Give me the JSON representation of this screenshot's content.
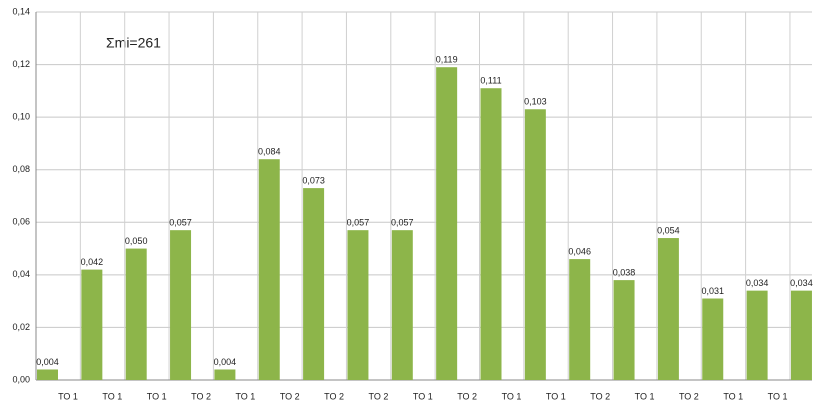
{
  "chart_data": {
    "type": "bar",
    "annotation": "Σmi=261",
    "categories": [
      "TO 1",
      "TO 1",
      "TO 1",
      "TO 2",
      "TO 1",
      "TO 2",
      "TO 2",
      "TO 2",
      "TO 1",
      "TO 2",
      "TO 1",
      "TO 1",
      "TO 2",
      "TO 1",
      "TO 2",
      "TO 1",
      "TO 1",
      null
    ],
    "values": [
      0.004,
      0.042,
      0.05,
      0.057,
      0.004,
      0.084,
      0.073,
      0.057,
      0.057,
      0.119,
      0.111,
      0.103,
      0.046,
      0.038,
      0.054,
      0.031,
      0.034,
      0.034
    ],
    "value_labels": [
      "0,004",
      "0,042",
      "0,050",
      "0,057",
      "0,004",
      "0,084",
      "0,073",
      "0,057",
      "0,057",
      "0,119",
      "0,111",
      "0,103",
      "0,046",
      "0,038",
      "0,054",
      "0,031",
      "0,034",
      "0,034"
    ],
    "color": "#8db54a",
    "ylim": [
      0,
      0.14
    ],
    "yticks": [
      {
        "value": 0,
        "label": "0,00"
      },
      {
        "value": 0.02,
        "label": "0,02"
      },
      {
        "value": 0.04,
        "label": "0,04"
      },
      {
        "value": 0.06,
        "label": "0,06"
      },
      {
        "value": 0.08,
        "label": "0,08"
      },
      {
        "value": 0.1,
        "label": "0,10"
      },
      {
        "value": 0.12,
        "label": "0,12"
      },
      {
        "value": 0.14,
        "label": "0,14"
      }
    ],
    "grid": true
  }
}
